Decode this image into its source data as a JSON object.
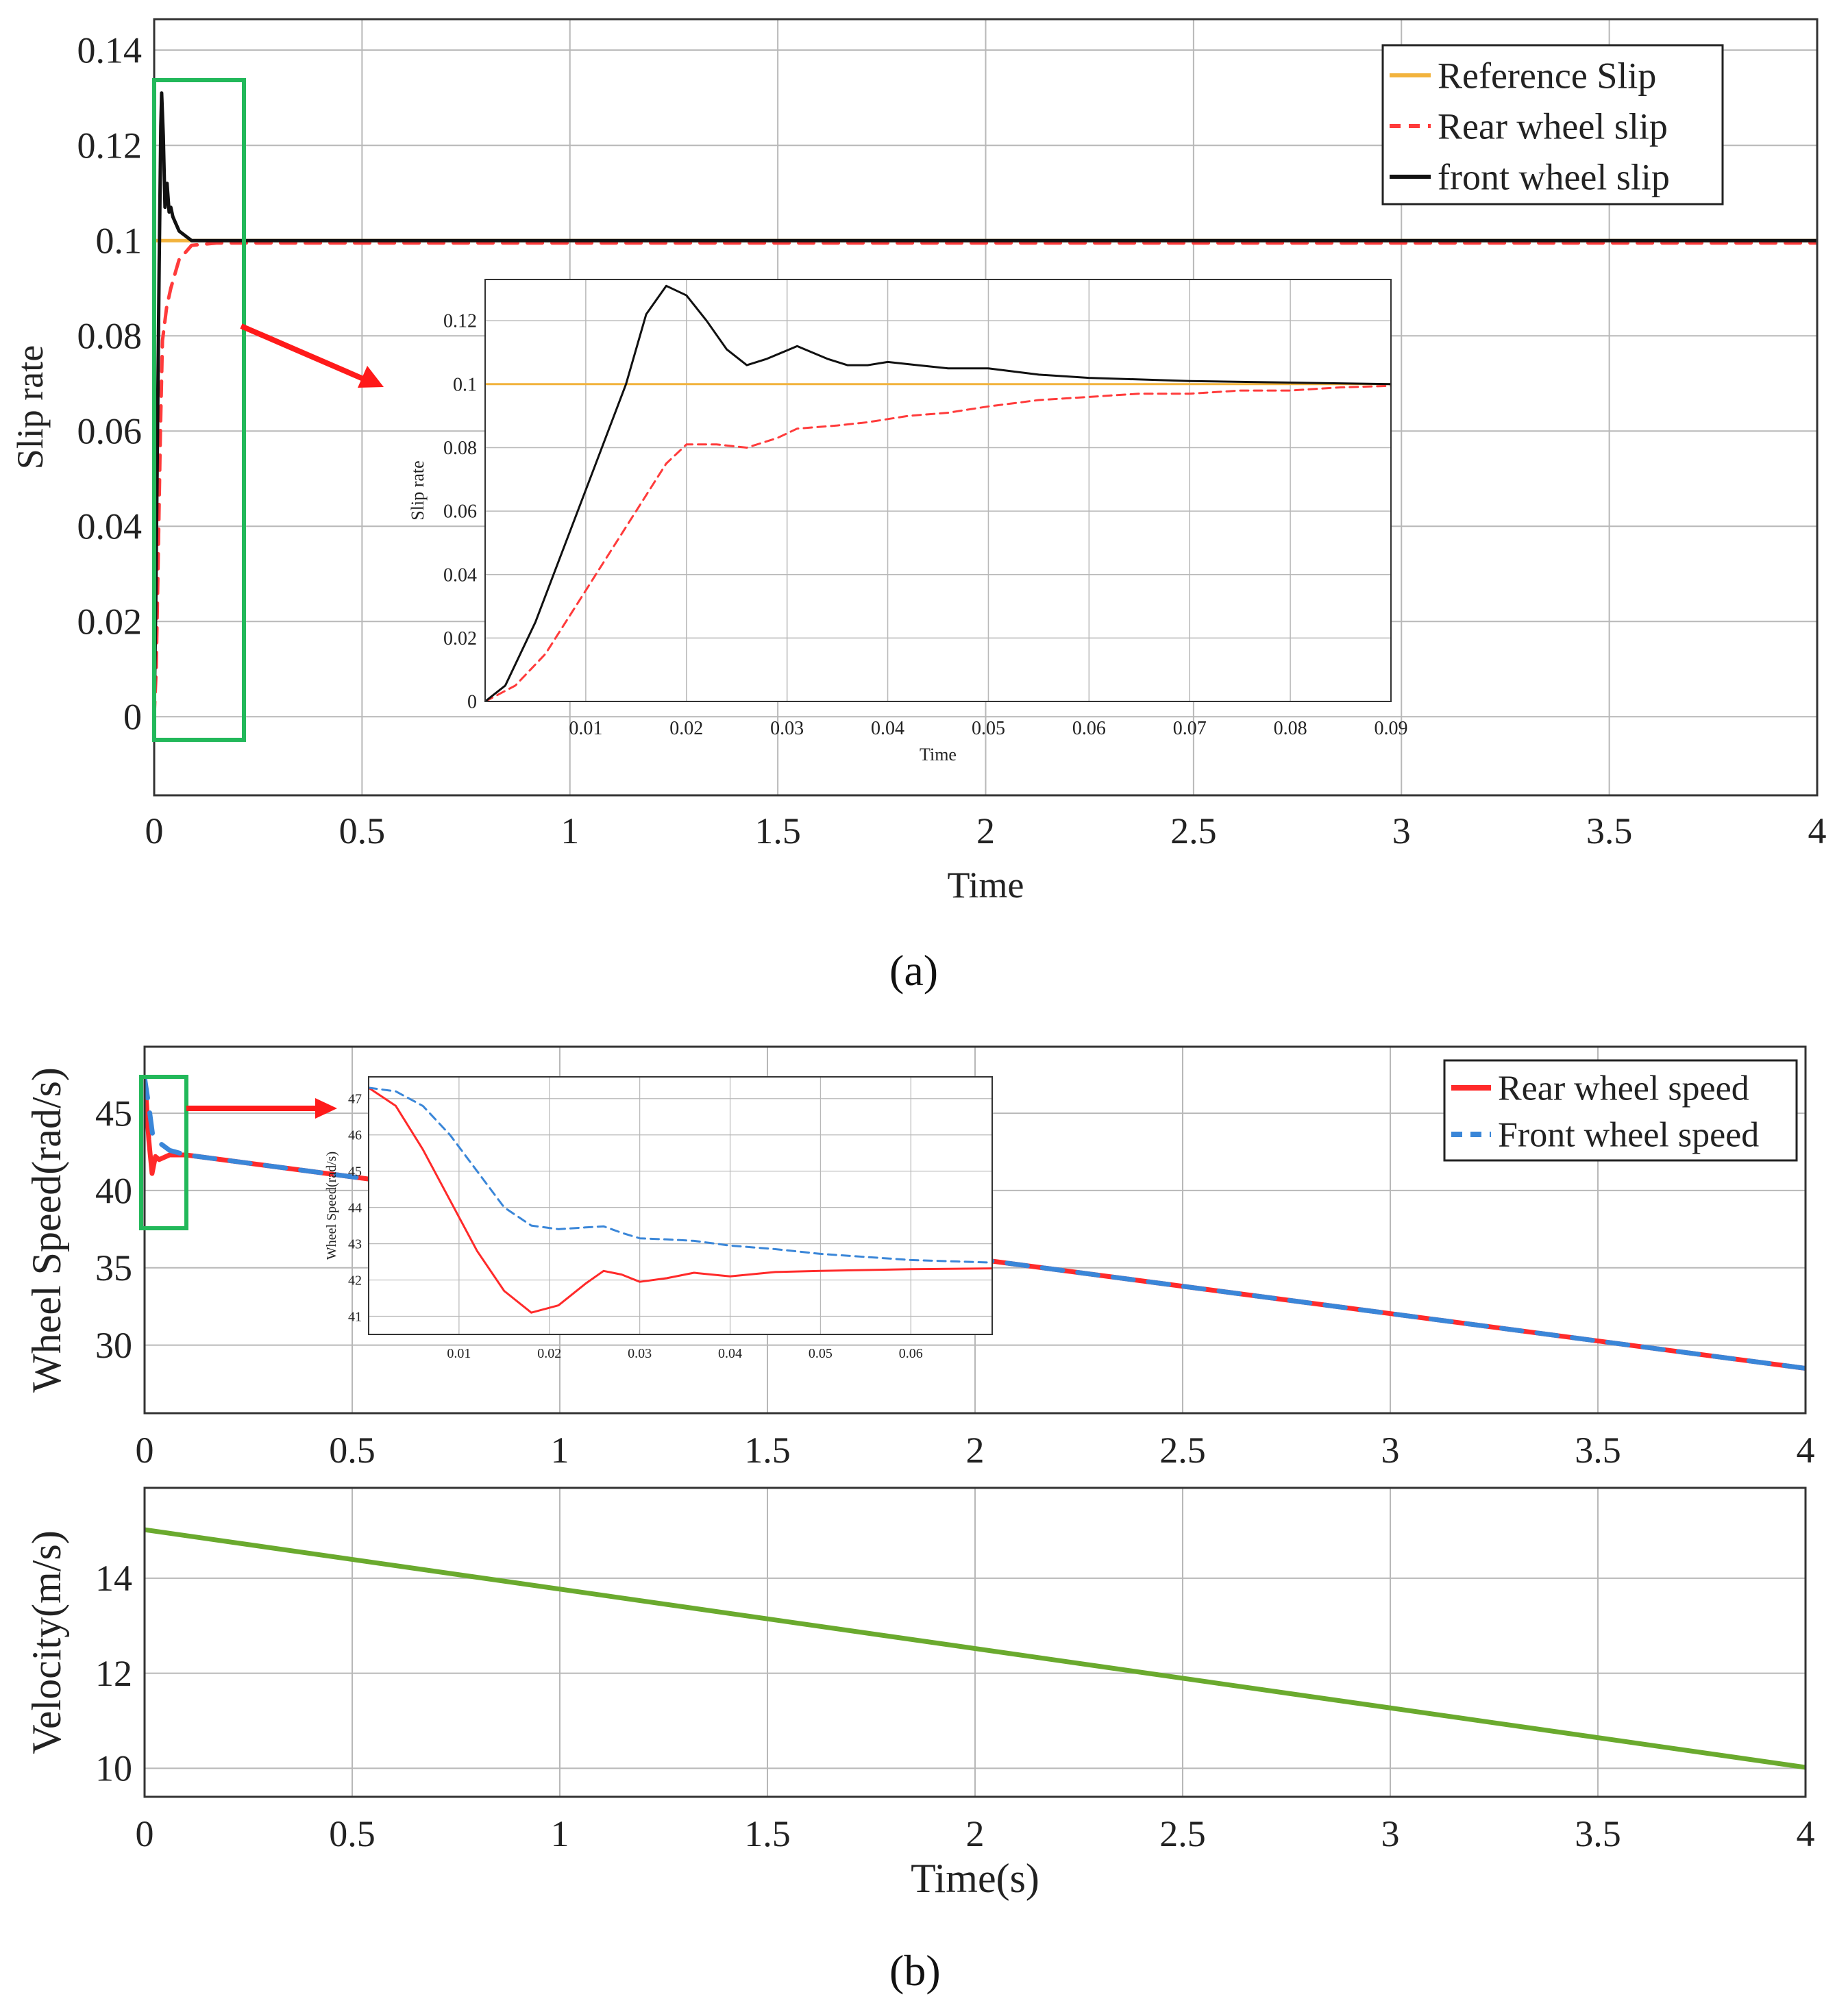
{
  "figure": {
    "label_a": "(a)",
    "label_b": "(b)"
  },
  "colors": {
    "reference": "#f2b33d",
    "rear_slip": "#ff3b3b",
    "front_slip": "#111111",
    "rear_speed": "#ff2a2a",
    "front_speed": "#3a86d8",
    "velocity": "#6aaa2e",
    "zoom_box": "#22b85a",
    "arrow": "#ff1a1a",
    "grid": "#b8b8b8"
  },
  "chart_data": [
    {
      "id": "slip_main",
      "type": "line",
      "xlabel": "Time",
      "ylabel": "Slip rate",
      "xlim": [
        0,
        4
      ],
      "ylim": [
        -0.0165,
        0.1465
      ],
      "xticks": [
        0,
        0.5,
        1,
        1.5,
        2,
        2.5,
        3,
        3.5,
        4
      ],
      "xtick_labels": [
        "0",
        "0.5",
        "1",
        "1.5",
        "2",
        "2.5",
        "3",
        "3.5",
        "4"
      ],
      "yticks": [
        0,
        0.02,
        0.04,
        0.06,
        0.08,
        0.1,
        0.12,
        0.14
      ],
      "ytick_labels": [
        "0",
        "0.02",
        "0.04",
        "0.06",
        "0.08",
        "0.1",
        "0.12",
        "0.14"
      ],
      "grid": true,
      "legend": "top-right",
      "series": [
        {
          "name": "Reference Slip",
          "style": "solid",
          "x": [
            0,
            4
          ],
          "y": [
            0.1,
            0.1
          ]
        },
        {
          "name": "Rear wheel slip",
          "style": "dashed",
          "x": [
            0,
            0.005,
            0.01,
            0.015,
            0.02,
            0.03,
            0.04,
            0.05,
            0.06,
            0.07,
            0.09,
            0.15,
            0.4,
            4
          ],
          "y": [
            0,
            0.01,
            0.035,
            0.06,
            0.079,
            0.086,
            0.09,
            0.093,
            0.096,
            0.097,
            0.099,
            0.0995,
            0.0995,
            0.0995
          ]
        },
        {
          "name": "front wheel slip",
          "style": "solid",
          "x": [
            0,
            0.004,
            0.008,
            0.012,
            0.016,
            0.018,
            0.022,
            0.026,
            0.031,
            0.036,
            0.04,
            0.045,
            0.05,
            0.06,
            0.09,
            0.15,
            4
          ],
          "y": [
            0,
            0.025,
            0.06,
            0.095,
            0.124,
            0.131,
            0.122,
            0.107,
            0.112,
            0.106,
            0.107,
            0.105,
            0.104,
            0.102,
            0.1,
            0.1,
            0.1
          ]
        }
      ]
    },
    {
      "id": "slip_inset",
      "type": "line",
      "xlabel": "Time",
      "ylabel": "Slip rate",
      "xlim": [
        0,
        0.09
      ],
      "ylim": [
        0,
        0.133
      ],
      "xticks": [
        0.01,
        0.02,
        0.03,
        0.04,
        0.05,
        0.06,
        0.07,
        0.08,
        0.09
      ],
      "xtick_labels": [
        "0.01",
        "0.02",
        "0.03",
        "0.04",
        "0.05",
        "0.06",
        "0.07",
        "0.08",
        "0.09"
      ],
      "yticks": [
        0,
        0.02,
        0.04,
        0.06,
        0.08,
        0.1,
        0.12
      ],
      "ytick_labels": [
        "0",
        "0.02",
        "0.04",
        "0.06",
        "0.08",
        "0.1",
        "0.12"
      ],
      "grid": true,
      "series": [
        {
          "name": "Reference Slip",
          "style": "solid",
          "x": [
            0,
            0.09
          ],
          "y": [
            0.1,
            0.1
          ]
        },
        {
          "name": "Rear wheel slip",
          "style": "dashed",
          "x": [
            0,
            0.003,
            0.006,
            0.01,
            0.014,
            0.018,
            0.02,
            0.023,
            0.026,
            0.029,
            0.031,
            0.035,
            0.038,
            0.042,
            0.046,
            0.05,
            0.055,
            0.06,
            0.065,
            0.07,
            0.075,
            0.08,
            0.085,
            0.09
          ],
          "y": [
            0,
            0.005,
            0.015,
            0.035,
            0.055,
            0.075,
            0.081,
            0.081,
            0.08,
            0.083,
            0.086,
            0.087,
            0.088,
            0.09,
            0.091,
            0.093,
            0.095,
            0.096,
            0.097,
            0.097,
            0.098,
            0.098,
            0.099,
            0.0995
          ]
        },
        {
          "name": "front wheel slip",
          "style": "solid",
          "x": [
            0,
            0.002,
            0.005,
            0.008,
            0.011,
            0.014,
            0.016,
            0.018,
            0.02,
            0.022,
            0.024,
            0.026,
            0.028,
            0.031,
            0.034,
            0.036,
            0.038,
            0.04,
            0.043,
            0.046,
            0.05,
            0.055,
            0.06,
            0.07,
            0.08,
            0.09
          ],
          "y": [
            0,
            0.005,
            0.025,
            0.05,
            0.075,
            0.1,
            0.122,
            0.131,
            0.128,
            0.12,
            0.111,
            0.106,
            0.108,
            0.112,
            0.108,
            0.106,
            0.106,
            0.107,
            0.106,
            0.105,
            0.105,
            0.103,
            0.102,
            0.101,
            0.1005,
            0.1
          ]
        }
      ]
    },
    {
      "id": "speed_main",
      "type": "line",
      "xlabel": "",
      "ylabel": "Wheel Speed(rad/s)",
      "xlim": [
        0,
        4
      ],
      "ylim": [
        25.6,
        49.3
      ],
      "xticks": [
        0,
        0.5,
        1,
        1.5,
        2,
        2.5,
        3,
        3.5,
        4
      ],
      "xtick_labels": [
        "0",
        "0.5",
        "1",
        "1.5",
        "2",
        "2.5",
        "3",
        "3.5",
        "4"
      ],
      "yticks": [
        30,
        35,
        40,
        45
      ],
      "ytick_labels": [
        "30",
        "35",
        "40",
        "45"
      ],
      "grid": true,
      "legend": "top-right",
      "series": [
        {
          "name": "Rear wheel speed",
          "style": "solid",
          "x": [
            0,
            0.005,
            0.01,
            0.018,
            0.026,
            0.035,
            0.06,
            0.1,
            4
          ],
          "y": [
            47.3,
            45.5,
            43.3,
            41.1,
            42.2,
            42.0,
            42.3,
            42.3,
            28.5
          ]
        },
        {
          "name": "Front wheel speed",
          "style": "dashed",
          "x": [
            0,
            0.01,
            0.02,
            0.03,
            0.06,
            0.1,
            4
          ],
          "y": [
            47.3,
            45.5,
            43.5,
            43.2,
            42.6,
            42.3,
            28.5
          ]
        }
      ]
    },
    {
      "id": "speed_inset",
      "type": "line",
      "xlabel": "",
      "ylabel": "Wheel Speed(rad/s)",
      "xlim": [
        0,
        0.069
      ],
      "ylim": [
        40.5,
        47.6
      ],
      "xticks": [
        0.01,
        0.02,
        0.03,
        0.04,
        0.05,
        0.06
      ],
      "xtick_labels": [
        "0.01",
        "0.02",
        "0.03",
        "0.04",
        "0.05",
        "0.06"
      ],
      "yticks": [
        41,
        42,
        43,
        44,
        45,
        46,
        47
      ],
      "ytick_labels": [
        "41",
        "42",
        "43",
        "44",
        "45",
        "46",
        "47"
      ],
      "grid": true,
      "series": [
        {
          "name": "Rear wheel speed",
          "style": "solid",
          "x": [
            0,
            0.003,
            0.006,
            0.009,
            0.012,
            0.015,
            0.018,
            0.021,
            0.024,
            0.026,
            0.028,
            0.03,
            0.033,
            0.036,
            0.04,
            0.045,
            0.05,
            0.06,
            0.069
          ],
          "y": [
            47.3,
            46.8,
            45.6,
            44.2,
            42.8,
            41.7,
            41.1,
            41.3,
            41.9,
            42.25,
            42.15,
            41.95,
            42.05,
            42.2,
            42.1,
            42.22,
            42.25,
            42.3,
            42.32
          ]
        },
        {
          "name": "Front wheel speed",
          "style": "dashed",
          "x": [
            0,
            0.003,
            0.006,
            0.009,
            0.012,
            0.015,
            0.018,
            0.021,
            0.024,
            0.026,
            0.028,
            0.03,
            0.033,
            0.036,
            0.04,
            0.045,
            0.05,
            0.06,
            0.069
          ],
          "y": [
            47.3,
            47.2,
            46.8,
            46.0,
            45.0,
            44.0,
            43.5,
            43.4,
            43.45,
            43.48,
            43.3,
            43.15,
            43.12,
            43.08,
            42.95,
            42.85,
            42.72,
            42.55,
            42.48
          ]
        }
      ]
    },
    {
      "id": "velocity",
      "type": "line",
      "xlabel": "Time(s)",
      "ylabel": "Velocity(m/s)",
      "xlim": [
        0,
        4
      ],
      "ylim": [
        9.4,
        15.9
      ],
      "xticks": [
        0,
        0.5,
        1,
        1.5,
        2,
        2.5,
        3,
        3.5,
        4
      ],
      "xtick_labels": [
        "0",
        "0.5",
        "1",
        "1.5",
        "2",
        "2.5",
        "3",
        "3.5",
        "4"
      ],
      "yticks": [
        10,
        12,
        14
      ],
      "ytick_labels": [
        "10",
        "12",
        "14"
      ],
      "grid": true,
      "series": [
        {
          "name": "Velocity",
          "style": "solid",
          "x": [
            0,
            4
          ],
          "y": [
            15.02,
            10.02
          ]
        }
      ]
    }
  ]
}
